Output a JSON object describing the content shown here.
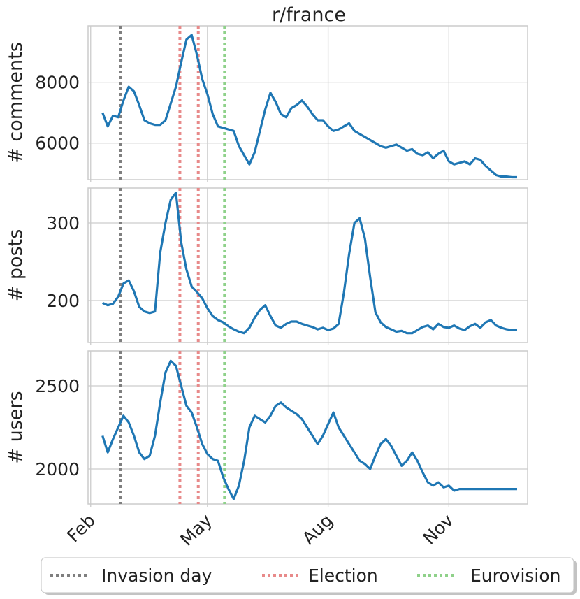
{
  "chart_data": {
    "type": "line",
    "title": "r/france",
    "x_ticks": [
      "Feb",
      "May",
      "Aug",
      "Nov"
    ],
    "events": [
      {
        "name": "Invasion day",
        "dates": [
          "2022-02-24"
        ],
        "color": "#7f7f7f"
      },
      {
        "name": "Election",
        "dates": [
          "2022-04-10",
          "2022-04-24"
        ],
        "color": "#e88a8a"
      },
      {
        "name": "Eurovision",
        "dates": [
          "2022-05-14"
        ],
        "color": "#8fd18a"
      }
    ],
    "legend": [
      "Invasion day",
      "Election",
      "Eurovision"
    ],
    "legend_position": "bottom",
    "grid": true,
    "line_color": "#1f77b4",
    "panels": [
      {
        "ylabel": "# comments",
        "yticks": [
          6000,
          8000
        ],
        "ylim": [
          4800,
          9850
        ],
        "x": [
          "2022-02-10",
          "2022-02-14",
          "2022-02-18",
          "2022-02-22",
          "2022-02-26",
          "2022-03-02",
          "2022-03-06",
          "2022-03-10",
          "2022-03-14",
          "2022-03-18",
          "2022-03-22",
          "2022-03-26",
          "2022-03-30",
          "2022-04-03",
          "2022-04-07",
          "2022-04-11",
          "2022-04-15",
          "2022-04-19",
          "2022-04-23",
          "2022-04-27",
          "2022-05-01",
          "2022-05-05",
          "2022-05-09",
          "2022-05-13",
          "2022-05-17",
          "2022-05-21",
          "2022-05-25",
          "2022-05-29",
          "2022-06-02",
          "2022-06-06",
          "2022-06-10",
          "2022-06-14",
          "2022-06-18",
          "2022-06-22",
          "2022-06-26",
          "2022-06-30",
          "2022-07-04",
          "2022-07-08",
          "2022-07-12",
          "2022-07-16",
          "2022-07-20",
          "2022-07-24",
          "2022-07-28",
          "2022-08-01",
          "2022-08-05",
          "2022-08-09",
          "2022-08-13",
          "2022-08-17",
          "2022-08-21",
          "2022-08-25",
          "2022-08-29",
          "2022-09-02",
          "2022-09-06",
          "2022-09-10",
          "2022-09-14",
          "2022-09-18",
          "2022-09-22",
          "2022-09-26",
          "2022-09-30",
          "2022-10-04",
          "2022-10-08",
          "2022-10-12",
          "2022-10-16",
          "2022-10-20",
          "2022-10-24",
          "2022-10-28",
          "2022-11-01",
          "2022-11-05",
          "2022-11-09",
          "2022-11-13",
          "2022-11-17",
          "2022-11-21",
          "2022-11-25",
          "2022-11-29",
          "2022-12-03",
          "2022-12-07",
          "2022-12-11",
          "2022-12-15",
          "2022-12-19",
          "2022-12-23"
        ],
        "y": [
          7000,
          6550,
          6900,
          6850,
          7400,
          7850,
          7700,
          7250,
          6750,
          6650,
          6600,
          6600,
          6750,
          7300,
          7850,
          8650,
          9400,
          9550,
          8900,
          8100,
          7600,
          6950,
          6550,
          6500,
          6450,
          6400,
          5900,
          5600,
          5300,
          5700,
          6400,
          7100,
          7650,
          7350,
          6950,
          6850,
          7150,
          7250,
          7400,
          7200,
          6950,
          6750,
          6750,
          6550,
          6400,
          6450,
          6550,
          6650,
          6400,
          6300,
          6200,
          6100,
          6000,
          5900,
          5850,
          5900,
          5950,
          5850,
          5750,
          5800,
          5650,
          5600,
          5700,
          5500,
          5650,
          5750,
          5400,
          5300,
          5350,
          5400,
          5300,
          5500,
          5450,
          5250,
          5100,
          4950,
          4900,
          4900,
          4880,
          4880
        ],
        "values_note": ""
      },
      {
        "ylabel": "# posts",
        "yticks": [
          200,
          300
        ],
        "ylim": [
          146,
          345
        ],
        "x": [
          "2022-02-10",
          "2022-02-14",
          "2022-02-18",
          "2022-02-22",
          "2022-02-26",
          "2022-03-02",
          "2022-03-06",
          "2022-03-10",
          "2022-03-14",
          "2022-03-18",
          "2022-03-22",
          "2022-03-26",
          "2022-03-30",
          "2022-04-03",
          "2022-04-07",
          "2022-04-11",
          "2022-04-15",
          "2022-04-19",
          "2022-04-23",
          "2022-04-27",
          "2022-05-01",
          "2022-05-05",
          "2022-05-09",
          "2022-05-13",
          "2022-05-17",
          "2022-05-21",
          "2022-05-25",
          "2022-05-29",
          "2022-06-02",
          "2022-06-06",
          "2022-06-10",
          "2022-06-14",
          "2022-06-18",
          "2022-06-22",
          "2022-06-26",
          "2022-06-30",
          "2022-07-04",
          "2022-07-08",
          "2022-07-12",
          "2022-07-16",
          "2022-07-20",
          "2022-07-24",
          "2022-07-28",
          "2022-08-01",
          "2022-08-05",
          "2022-08-09",
          "2022-08-13",
          "2022-08-17",
          "2022-08-21",
          "2022-08-25",
          "2022-08-29",
          "2022-09-02",
          "2022-09-06",
          "2022-09-10",
          "2022-09-14",
          "2022-09-18",
          "2022-09-22",
          "2022-09-26",
          "2022-09-30",
          "2022-10-04",
          "2022-10-08",
          "2022-10-12",
          "2022-10-16",
          "2022-10-20",
          "2022-10-24",
          "2022-10-28",
          "2022-11-01",
          "2022-11-05",
          "2022-11-09",
          "2022-11-13",
          "2022-11-17",
          "2022-11-21",
          "2022-11-25",
          "2022-11-29",
          "2022-12-03",
          "2022-12-07",
          "2022-12-11",
          "2022-12-15",
          "2022-12-19",
          "2022-12-23"
        ],
        "y": [
          197,
          194,
          196,
          205,
          222,
          226,
          212,
          192,
          186,
          184,
          186,
          262,
          300,
          330,
          339,
          275,
          240,
          218,
          211,
          203,
          190,
          180,
          175,
          172,
          167,
          163,
          160,
          158,
          165,
          178,
          188,
          194,
          180,
          168,
          165,
          170,
          173,
          173,
          170,
          168,
          166,
          163,
          165,
          162,
          164,
          170,
          210,
          260,
          300,
          306,
          280,
          230,
          185,
          172,
          166,
          163,
          160,
          161,
          158,
          158,
          162,
          166,
          168,
          163,
          170,
          166,
          165,
          168,
          164,
          162,
          167,
          170,
          165,
          172,
          175,
          168,
          165,
          163,
          162,
          162
        ],
        "values_note": ""
      },
      {
        "ylabel": "# users",
        "yticks": [
          2000,
          2500
        ],
        "ylim": [
          1790,
          2710
        ],
        "x": [
          "2022-02-10",
          "2022-02-14",
          "2022-02-18",
          "2022-02-22",
          "2022-02-26",
          "2022-03-02",
          "2022-03-06",
          "2022-03-10",
          "2022-03-14",
          "2022-03-18",
          "2022-03-22",
          "2022-03-26",
          "2022-03-30",
          "2022-04-03",
          "2022-04-07",
          "2022-04-11",
          "2022-04-15",
          "2022-04-19",
          "2022-04-23",
          "2022-04-27",
          "2022-05-01",
          "2022-05-05",
          "2022-05-09",
          "2022-05-13",
          "2022-05-17",
          "2022-05-21",
          "2022-05-25",
          "2022-05-29",
          "2022-06-02",
          "2022-06-06",
          "2022-06-10",
          "2022-06-14",
          "2022-06-18",
          "2022-06-22",
          "2022-06-26",
          "2022-06-30",
          "2022-07-04",
          "2022-07-08",
          "2022-07-12",
          "2022-07-16",
          "2022-07-20",
          "2022-07-24",
          "2022-07-28",
          "2022-08-01",
          "2022-08-05",
          "2022-08-09",
          "2022-08-13",
          "2022-08-17",
          "2022-08-21",
          "2022-08-25",
          "2022-08-29",
          "2022-09-02",
          "2022-09-06",
          "2022-09-10",
          "2022-09-14",
          "2022-09-18",
          "2022-09-22",
          "2022-09-26",
          "2022-09-30",
          "2022-10-04",
          "2022-10-08",
          "2022-10-12",
          "2022-10-16",
          "2022-10-20",
          "2022-10-24",
          "2022-10-28",
          "2022-11-01",
          "2022-11-05",
          "2022-11-09",
          "2022-11-13",
          "2022-11-17",
          "2022-11-21",
          "2022-11-25",
          "2022-11-29",
          "2022-12-03",
          "2022-12-07",
          "2022-12-11",
          "2022-12-15",
          "2022-12-19",
          "2022-12-23"
        ],
        "y": [
          2200,
          2100,
          2180,
          2250,
          2320,
          2280,
          2200,
          2100,
          2060,
          2080,
          2200,
          2400,
          2580,
          2650,
          2620,
          2500,
          2380,
          2340,
          2250,
          2150,
          2090,
          2060,
          2050,
          1950,
          1880,
          1820,
          1900,
          2050,
          2250,
          2320,
          2300,
          2280,
          2320,
          2380,
          2400,
          2370,
          2350,
          2330,
          2300,
          2250,
          2200,
          2150,
          2200,
          2270,
          2340,
          2250,
          2200,
          2150,
          2100,
          2050,
          2030,
          2000,
          2080,
          2150,
          2180,
          2140,
          2080,
          2020,
          2050,
          2100,
          2050,
          1980,
          1920,
          1900,
          1920,
          1890,
          1900,
          1870,
          1880,
          1880,
          1880,
          1880,
          1880,
          1880,
          1880,
          1880,
          1880,
          1880,
          1880,
          1880
        ]
      }
    ]
  }
}
